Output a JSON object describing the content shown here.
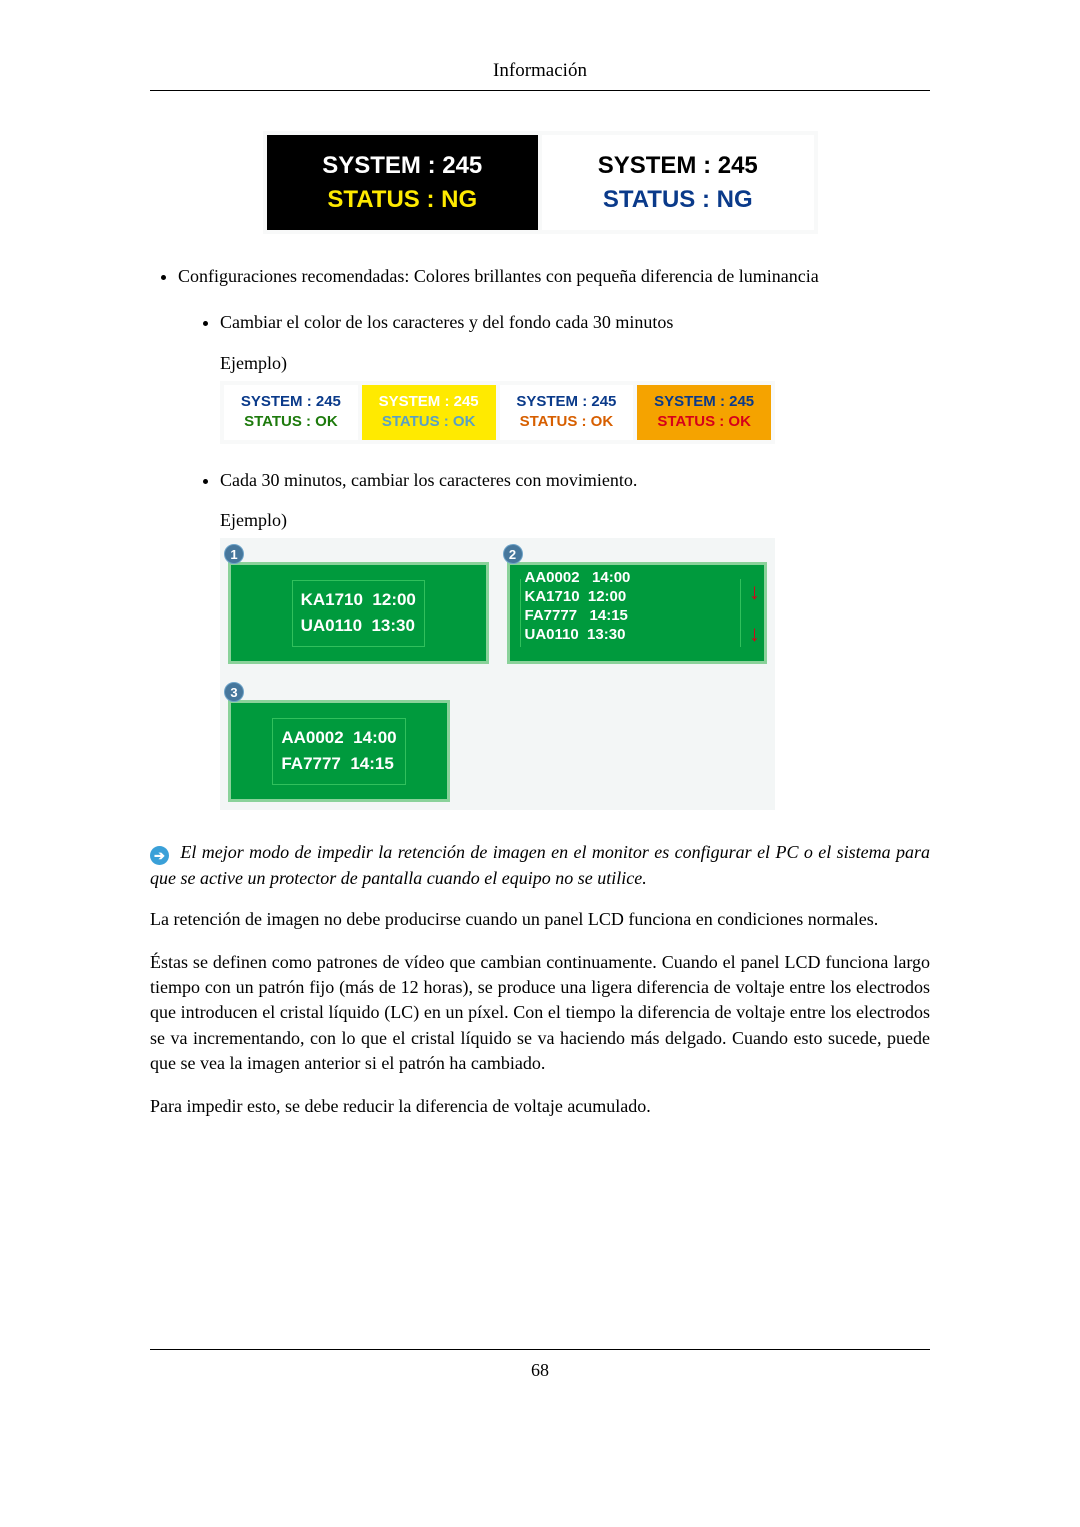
{
  "header": {
    "title": "Información"
  },
  "figure1": {
    "left": {
      "bg": "#000000",
      "line1": "SYSTEM : 245",
      "color1": "#ffffff",
      "line2": "STATUS : NG",
      "color2": "#ffea00"
    },
    "right": {
      "bg": "#ffffff",
      "line1": "SYSTEM : 245",
      "color1": "#000000",
      "line2": "STATUS : NG",
      "color2": "#0a3a8a"
    }
  },
  "bullets": {
    "main": "Configuraciones recomendadas: Colores brillantes con pequeña diferencia de luminancia",
    "sub1": "Cambiar el color de los caracteres y del fondo cada 30 minutos",
    "ejemplo": "Ejemplo)",
    "sub2": "Cada 30 minutos, cambiar los caracteres con movimiento."
  },
  "figure2": {
    "cells": [
      {
        "bg": "#ffffff",
        "line1": "SYSTEM : 245",
        "color1": "#0a3a8a",
        "line2": "STATUS : OK",
        "color2": "#1d7a0c"
      },
      {
        "bg": "#ffea00",
        "line1": "SYSTEM : 245",
        "color1": "#ffffff",
        "line2": "STATUS : OK",
        "color2": "#5aa0c3"
      },
      {
        "bg": "#ffffff",
        "line1": "SYSTEM : 245",
        "color1": "#0a3a8a",
        "line2": "STATUS : OK",
        "color2": "#d75f00"
      },
      {
        "bg": "#f5a300",
        "line1": "SYSTEM : 245",
        "color1": "#0a3a8a",
        "line2": "STATUS : OK",
        "color2": "#d6001a"
      }
    ]
  },
  "figure3": {
    "panel1": {
      "badge": "1",
      "line1": "KA1710  12:00",
      "line2": "UA0110  13:30"
    },
    "panel2": {
      "badge": "2",
      "text": "AA0002   14:00\nKA1710  12:00\nFA7777   14:15\nUA0110  13:30"
    },
    "panel3": {
      "badge": "3",
      "line1": "AA0002  14:00",
      "line2": "FA7777  14:15"
    }
  },
  "tip": {
    "text": " El mejor modo de impedir la retención de imagen en el monitor es configurar el PC o el sistema para que se active un protector de pantalla cuando el equipo no se utilice."
  },
  "paragraphs": {
    "p1": "La retención de imagen no debe producirse cuando un panel LCD funciona en condiciones normales.",
    "p2": "Éstas se definen como patrones de vídeo que cambian continuamente. Cuando el panel LCD funciona largo tiempo con un patrón fijo (más de 12 horas), se produce una ligera diferencia de voltaje entre los electrodos que introducen el cristal líquido (LC) en un píxel. Con el tiempo la diferencia de voltaje entre los electrodos se va incrementando, con lo que el cristal líquido se va haciendo más delgado. Cuando esto sucede, puede que se vea la imagen anterior si el patrón ha cambiado.",
    "p3": "Para impedir esto, se debe reducir la diferencia de voltaje acumulado."
  },
  "footer": {
    "page": "68"
  }
}
